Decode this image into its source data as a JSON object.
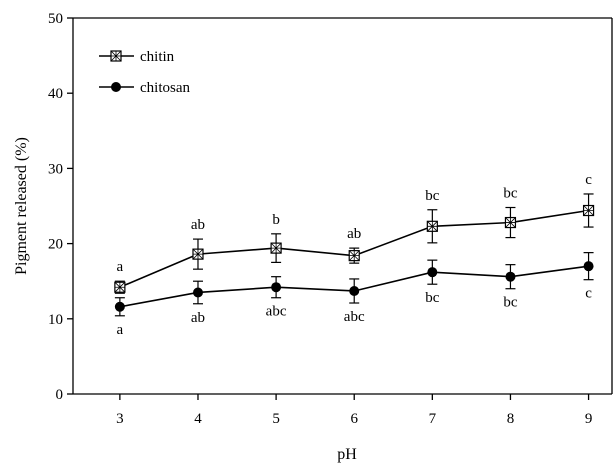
{
  "chart_data": {
    "type": "line",
    "title": "",
    "xlabel": "pH",
    "ylabel": "Pigment released (%)",
    "x": [
      3,
      4,
      5,
      6,
      7,
      8,
      9
    ],
    "xlim": [
      2.4,
      9.3
    ],
    "ylim": [
      0,
      50
    ],
    "yticks": [
      0,
      10,
      20,
      30,
      40,
      50
    ],
    "grid": false,
    "legend_position": "top-left",
    "series": [
      {
        "name": "chitin",
        "marker": "crossed-square",
        "values": [
          14.2,
          18.6,
          19.4,
          18.4,
          22.3,
          22.8,
          24.4
        ],
        "errors": [
          0.8,
          2.0,
          1.9,
          1.0,
          2.2,
          2.0,
          2.2
        ],
        "labels": [
          "a",
          "ab",
          "b",
          "ab",
          "bc",
          "bc",
          "c"
        ]
      },
      {
        "name": "chitosan",
        "marker": "filled-circle",
        "values": [
          11.6,
          13.5,
          14.2,
          13.7,
          16.2,
          15.6,
          17.0
        ],
        "errors": [
          1.2,
          1.5,
          1.4,
          1.6,
          1.6,
          1.6,
          1.8
        ],
        "labels": [
          "a",
          "ab",
          "abc",
          "abc",
          "bc",
          "bc",
          "c"
        ]
      }
    ]
  }
}
